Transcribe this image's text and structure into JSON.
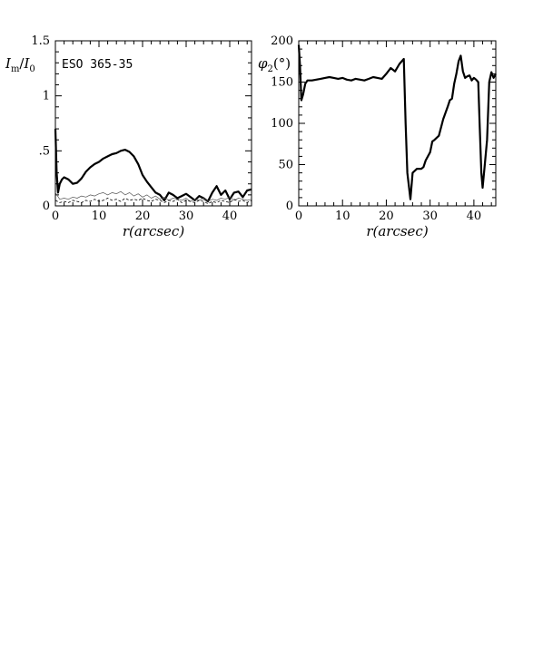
{
  "chart_data": [
    {
      "type": "line",
      "annotation": "ESO 365-35",
      "xlabel": "r(arcsec)",
      "ylabel": "I_m/I_0",
      "ylabel_parts": {
        "main": "I",
        "sub1": "m",
        "slash": "/",
        "main2": "I",
        "sub2": "0"
      },
      "xlim": [
        0,
        45
      ],
      "ylim": [
        0,
        1.5
      ],
      "xticks": [
        0,
        10,
        20,
        30,
        40
      ],
      "xtick_labels": [
        "0",
        "10",
        "20",
        "30",
        "40"
      ],
      "yticks": [
        0,
        0.5,
        1,
        1.5
      ],
      "ytick_labels": [
        "0",
        ".5",
        "1",
        "1.5"
      ],
      "series": [
        {
          "style": "thick-solid",
          "x": [
            0,
            0.3,
            0.6,
            1,
            1.5,
            2,
            3,
            4,
            5,
            6,
            7,
            8,
            9,
            10,
            11,
            12,
            13,
            14,
            15,
            16,
            17,
            18,
            19,
            20,
            21,
            22,
            23,
            24,
            25,
            26,
            27,
            28,
            29,
            30,
            31,
            32,
            33,
            34,
            35,
            36,
            37,
            38,
            39,
            40,
            41,
            42,
            43,
            44,
            45
          ],
          "y": [
            0.7,
            0.3,
            0.12,
            0.2,
            0.24,
            0.26,
            0.24,
            0.2,
            0.21,
            0.25,
            0.31,
            0.35,
            0.38,
            0.4,
            0.43,
            0.45,
            0.47,
            0.48,
            0.5,
            0.51,
            0.49,
            0.45,
            0.38,
            0.28,
            0.22,
            0.17,
            0.12,
            0.1,
            0.05,
            0.12,
            0.1,
            0.07,
            0.09,
            0.11,
            0.08,
            0.05,
            0.09,
            0.07,
            0.04,
            0.12,
            0.18,
            0.1,
            0.14,
            0.06,
            0.12,
            0.13,
            0.08,
            0.14,
            0.15
          ]
        },
        {
          "style": "thin-solid",
          "x": [
            0,
            1,
            2,
            3,
            4,
            5,
            6,
            7,
            8,
            9,
            10,
            11,
            12,
            13,
            14,
            15,
            16,
            17,
            18,
            19,
            20,
            21,
            22,
            23,
            24,
            25,
            26,
            27,
            28,
            29,
            30,
            31,
            32,
            33,
            34,
            35,
            36,
            37,
            38,
            39,
            40,
            41,
            42,
            43,
            44,
            45
          ],
          "y": [
            0.12,
            0.06,
            0.07,
            0.06,
            0.08,
            0.07,
            0.09,
            0.08,
            0.1,
            0.09,
            0.11,
            0.12,
            0.1,
            0.12,
            0.11,
            0.13,
            0.1,
            0.12,
            0.09,
            0.11,
            0.08,
            0.1,
            0.07,
            0.09,
            0.06,
            0.08,
            0.05,
            0.07,
            0.06,
            0.05,
            0.07,
            0.04,
            0.06,
            0.05,
            0.07,
            0.04,
            0.06,
            0.05,
            0.07,
            0.06,
            0.08,
            0.05,
            0.07,
            0.06,
            0.05,
            0.06
          ]
        },
        {
          "style": "thin-dashed",
          "x": [
            0,
            1,
            2,
            3,
            4,
            5,
            6,
            7,
            8,
            9,
            10,
            11,
            12,
            13,
            14,
            15,
            16,
            17,
            18,
            19,
            20,
            21,
            22,
            23,
            24,
            25,
            26,
            27,
            28,
            29,
            30,
            31,
            32,
            33,
            34,
            35,
            36,
            37,
            38,
            39,
            40,
            41,
            42,
            43,
            44,
            45
          ],
          "y": [
            0.05,
            0.03,
            0.04,
            0.03,
            0.05,
            0.04,
            0.03,
            0.05,
            0.04,
            0.06,
            0.04,
            0.05,
            0.07,
            0.05,
            0.06,
            0.04,
            0.07,
            0.05,
            0.06,
            0.05,
            0.07,
            0.05,
            0.04,
            0.06,
            0.05,
            0.03,
            0.05,
            0.04,
            0.06,
            0.03,
            0.05,
            0.04,
            0.03,
            0.05,
            0.04,
            0.02,
            0.04,
            0.03,
            0.05,
            0.04,
            0.03,
            0.06,
            0.04,
            0.05,
            0.03,
            0.05
          ]
        }
      ]
    },
    {
      "type": "line",
      "xlabel": "r(arcsec)",
      "ylabel": "φ2(°)",
      "ylabel_parts": {
        "main": "φ",
        "sub": "2",
        "rest": "(°)"
      },
      "xlim": [
        0,
        45
      ],
      "ylim": [
        0,
        200
      ],
      "xticks": [
        0,
        10,
        20,
        30,
        40
      ],
      "xtick_labels": [
        "0",
        "10",
        "20",
        "30",
        "40"
      ],
      "yticks": [
        0,
        50,
        100,
        150,
        200
      ],
      "ytick_labels": [
        "0",
        "50",
        "100",
        "150",
        "200"
      ],
      "series": [
        {
          "style": "thick-solid",
          "x": [
            0,
            0.3,
            0.6,
            1,
            1.5,
            2,
            3,
            4,
            5,
            6,
            7,
            8,
            9,
            10,
            11,
            12,
            13,
            14,
            15,
            16,
            17,
            18,
            19,
            20,
            21,
            22,
            23,
            24,
            24.4,
            24.8,
            25.5,
            26,
            27,
            28,
            28.5,
            29,
            30,
            30.5,
            31,
            32,
            32.5,
            33,
            34,
            34.5,
            35,
            35.5,
            36,
            36.5,
            37,
            37.5,
            38,
            38.5,
            39,
            39.5,
            40,
            40.5,
            41,
            41.3,
            41.7,
            42,
            42.5,
            43,
            43.5,
            44,
            44.5,
            45
          ],
          "y": [
            195,
            170,
            128,
            135,
            148,
            152,
            152,
            153,
            154,
            155,
            156,
            155,
            154,
            155,
            153,
            152,
            154,
            153,
            152,
            154,
            156,
            155,
            154,
            160,
            167,
            163,
            172,
            178,
            100,
            40,
            8,
            40,
            45,
            45,
            47,
            55,
            65,
            78,
            80,
            85,
            95,
            105,
            120,
            128,
            130,
            148,
            160,
            175,
            182,
            163,
            155,
            157,
            158,
            152,
            155,
            153,
            150,
            100,
            40,
            22,
            50,
            80,
            150,
            162,
            155,
            160
          ]
        }
      ]
    }
  ]
}
